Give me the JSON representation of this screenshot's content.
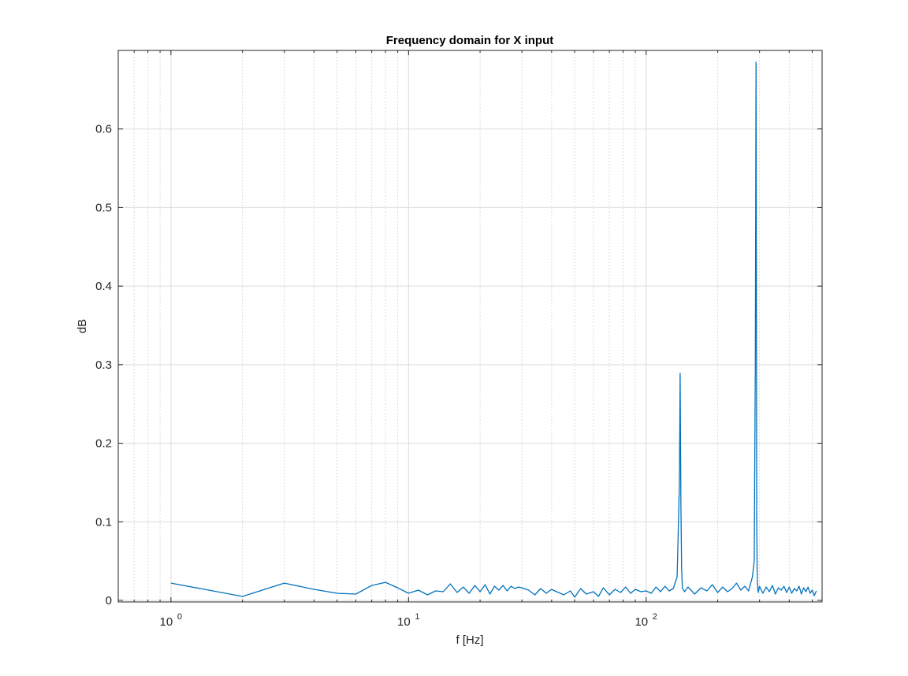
{
  "chart_data": {
    "type": "line",
    "title": "Frequency domain for X input",
    "xlabel": "f [Hz]",
    "ylabel": "dB",
    "xscale": "log",
    "xlim": [
      0.6,
      550
    ],
    "ylim": [
      -0.002,
      0.7
    ],
    "grid": true,
    "minor_grid_x": true,
    "legend": null,
    "x_ticks": [
      {
        "base": "10",
        "exp": "0",
        "value": 1
      },
      {
        "base": "10",
        "exp": "1",
        "value": 10
      },
      {
        "base": "10",
        "exp": "2",
        "value": 100
      }
    ],
    "y_ticks": [
      "0",
      "0.1",
      "0.2",
      "0.3",
      "0.4",
      "0.5",
      "0.6"
    ],
    "colors": {
      "series": "#0072BD",
      "axis": "#262626",
      "grid": "#DCDCDC"
    },
    "series": [
      {
        "x": [
          1,
          2,
          3,
          4,
          5,
          6,
          7,
          8,
          9,
          10,
          11,
          12,
          13,
          14,
          15,
          16,
          17,
          18,
          19,
          20,
          21,
          22,
          23,
          24,
          25,
          26,
          27,
          28,
          29,
          30,
          32,
          34,
          36,
          38,
          40,
          42,
          45,
          48,
          50,
          53,
          56,
          60,
          63,
          66,
          70,
          74,
          78,
          82,
          86,
          90,
          95,
          100,
          105,
          110,
          115,
          120,
          125,
          130,
          135,
          138,
          139,
          140,
          141,
          142,
          145,
          150,
          160,
          170,
          180,
          190,
          200,
          210,
          220,
          230,
          240,
          250,
          260,
          270,
          280,
          285,
          288,
          290,
          291,
          292,
          293,
          294,
          296,
          300,
          310,
          320,
          330,
          340,
          350,
          360,
          370,
          380,
          390,
          400,
          410,
          420,
          430,
          440,
          450,
          460,
          470,
          480,
          490,
          500,
          510,
          520
        ],
        "y": [
          0.022,
          0.005,
          0.022,
          0.014,
          0.009,
          0.008,
          0.019,
          0.023,
          0.016,
          0.009,
          0.013,
          0.007,
          0.012,
          0.011,
          0.021,
          0.01,
          0.017,
          0.009,
          0.019,
          0.011,
          0.02,
          0.008,
          0.018,
          0.013,
          0.019,
          0.012,
          0.018,
          0.015,
          0.017,
          0.016,
          0.013,
          0.007,
          0.015,
          0.009,
          0.014,
          0.011,
          0.007,
          0.012,
          0.004,
          0.015,
          0.008,
          0.011,
          0.005,
          0.016,
          0.007,
          0.014,
          0.01,
          0.017,
          0.009,
          0.014,
          0.011,
          0.012,
          0.009,
          0.017,
          0.011,
          0.018,
          0.012,
          0.015,
          0.03,
          0.15,
          0.289,
          0.12,
          0.04,
          0.016,
          0.011,
          0.017,
          0.008,
          0.016,
          0.012,
          0.02,
          0.01,
          0.017,
          0.011,
          0.015,
          0.022,
          0.013,
          0.018,
          0.012,
          0.03,
          0.05,
          0.3,
          0.685,
          0.4,
          0.1,
          0.04,
          0.022,
          0.01,
          0.018,
          0.009,
          0.017,
          0.011,
          0.019,
          0.008,
          0.016,
          0.013,
          0.018,
          0.01,
          0.017,
          0.009,
          0.015,
          0.012,
          0.018,
          0.008,
          0.016,
          0.011,
          0.017,
          0.009,
          0.013,
          0.006,
          0.012
        ]
      }
    ]
  }
}
